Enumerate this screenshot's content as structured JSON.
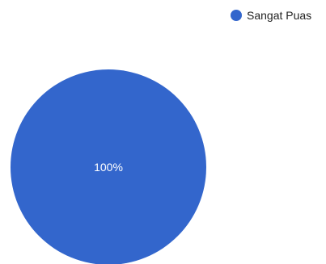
{
  "chart_data": {
    "type": "pie",
    "categories": [
      "Sangat Puas"
    ],
    "values": [
      100
    ],
    "slice_labels": [
      "100%"
    ],
    "colors": [
      "#3366cc"
    ],
    "legend": {
      "placement": "top-right",
      "entries": [
        "Sangat Puas"
      ]
    }
  }
}
